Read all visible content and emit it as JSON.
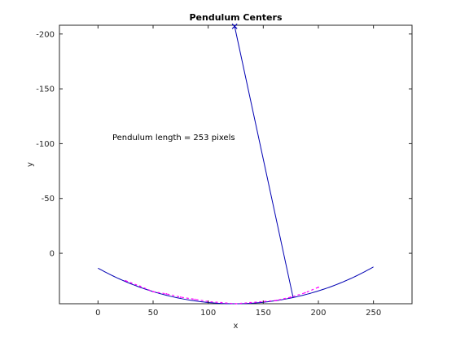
{
  "chart_data": {
    "type": "line",
    "title": "Pendulum Centers",
    "xlabel": "x",
    "ylabel": "y",
    "xlim": [
      -35,
      285
    ],
    "ylim": [
      -208,
      46
    ],
    "y_reversed": true,
    "grid": false,
    "xticks": [
      0,
      50,
      100,
      150,
      200,
      250
    ],
    "yticks": [
      -200,
      -150,
      -100,
      -50,
      0
    ],
    "annotations": [
      {
        "text": "Pendulum length = 253 pixels",
        "x": 13,
        "y": -106
      }
    ],
    "colors": {
      "arc": "#0000b3",
      "centers": "#ff00ff",
      "pivot": "#0000b3",
      "rod": "#0000b3"
    },
    "series": [
      {
        "role": "arc",
        "pivot": [
          124,
          -207
        ],
        "radius": 253,
        "x_range": [
          0,
          250
        ]
      },
      {
        "role": "centers",
        "x": [
          25,
          38,
          50,
          62,
          75,
          88,
          100,
          112,
          125,
          138,
          150,
          162,
          175,
          188,
          200
        ],
        "y": [
          25,
          30,
          35,
          37,
          40,
          42,
          44,
          45,
          46,
          45,
          44,
          43,
          40,
          36,
          31
        ]
      },
      {
        "role": "pivot",
        "x": [
          124
        ],
        "y": [
          -207
        ]
      },
      {
        "role": "rod",
        "x": [
          124,
          177
        ],
        "y": [
          -207,
          40
        ]
      }
    ]
  }
}
